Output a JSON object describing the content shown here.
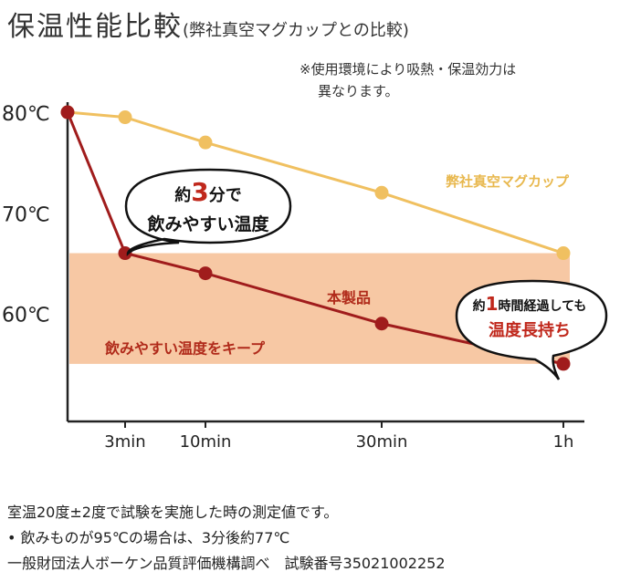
{
  "title": {
    "main": "保温性能比較",
    "sub": "(弊社真空マグカップとの比較)"
  },
  "note": {
    "line1": "※使用環境により吸熱・保温効力は",
    "line2": "異なります。"
  },
  "chart_data": {
    "type": "line",
    "x_ticks": [
      {
        "label": "3min",
        "minutes": 3
      },
      {
        "label": "10min",
        "minutes": 10
      },
      {
        "label": "30min",
        "minutes": 30
      },
      {
        "label": "1h",
        "minutes": 60
      }
    ],
    "y_ticks": [
      {
        "label": "80℃",
        "value": 80
      },
      {
        "label": "70℃",
        "value": 70
      },
      {
        "label": "60℃",
        "value": 60
      }
    ],
    "ylim": [
      52,
      81
    ],
    "series": [
      {
        "name": "弊社真空マグカップ",
        "color": "#f0c060",
        "points": [
          [
            0,
            80
          ],
          [
            3,
            79.5
          ],
          [
            10,
            77
          ],
          [
            30,
            72
          ],
          [
            60,
            66
          ]
        ]
      },
      {
        "name": "本製品",
        "color": "#a01c1c",
        "points": [
          [
            0,
            80
          ],
          [
            3,
            66
          ],
          [
            10,
            64
          ],
          [
            30,
            59
          ],
          [
            60,
            55
          ]
        ]
      }
    ],
    "band": {
      "label": "飲みやすい温度をキープ",
      "from": 55,
      "to": 66,
      "color": "#f7c8a4"
    },
    "callout_left": {
      "pre": "約",
      "num": "3",
      "post": "分で",
      "line2": "飲みやすい温度"
    },
    "callout_right": {
      "pre": "約",
      "num": "1",
      "post": "時間経過しても",
      "line2": "温度長持ち"
    }
  },
  "footer": {
    "line1": "室温20度±2度で試験を実施した時の測定値です。",
    "line2": "• 飲みものが95℃の場合は、3分後約77℃",
    "line3": "一般財団法人ボーケン品質評価機構調べ　試験番号35021002252"
  }
}
